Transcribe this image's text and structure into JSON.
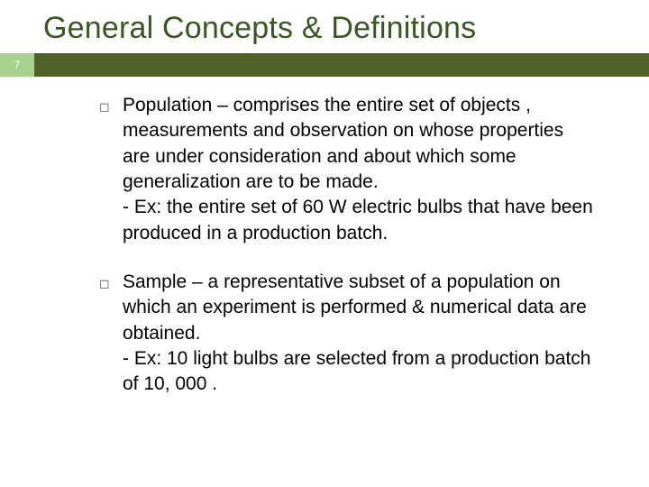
{
  "colors": {
    "title": "#385723",
    "page_box_bg": "#a9d18e",
    "page_box_text": "#ffffff",
    "stripe_bg": "#4f6228",
    "bullet_marker": "#595959",
    "body_text": "#000000"
  },
  "title": "General Concepts & Definitions",
  "page_number": "7",
  "bullets": [
    {
      "marker": "◻",
      "text": "Population – comprises the entire set of objects , measurements and observation on whose properties are under consideration and about which some generalization are to be made.",
      "example": "- Ex: the entire set of 60 W electric bulbs that have been produced in a production batch."
    },
    {
      "marker": "◻",
      "text": "Sample – a representative subset of a population on which an experiment is performed & numerical data are obtained.",
      "example": "- Ex: 10 light bulbs are selected from a production batch of 10, 000 ."
    }
  ],
  "fontsizes": {
    "title": 34,
    "body": 21,
    "page_num": 12
  }
}
